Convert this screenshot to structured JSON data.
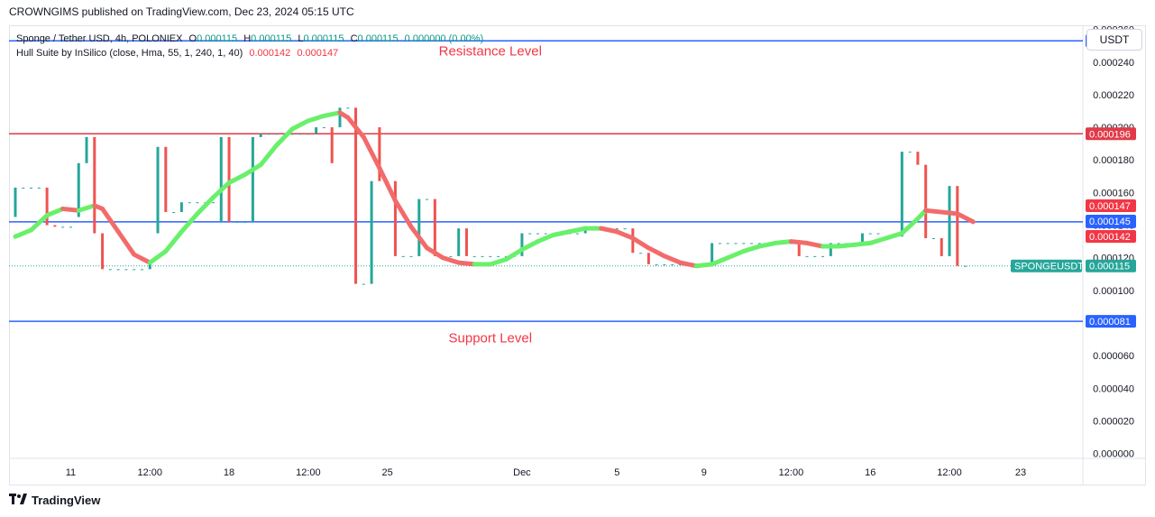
{
  "header": {
    "published_by": "CROWNGIMS published on TradingView.com, Dec 23, 2024 05:15 UTC"
  },
  "legend": {
    "symbol": "Sponge / Tether USD, 4h, POLONIEX",
    "o_label": "O",
    "o_value": "0.000115",
    "h_label": "H",
    "h_value": "0.000115",
    "l_label": "L",
    "l_value": "0.000115",
    "c_label": "C",
    "c_value": "0.000115",
    "change": "0.000000 (0.00%)",
    "indicator": "Hull Suite by InSilico (close, Hma, 55, 1, 240, 1, 40)",
    "ind_value1": "0.000142",
    "ind_value2": "0.000147"
  },
  "currency": "USDT",
  "footer": {
    "brand": "TradingView"
  },
  "colors": {
    "up": "#26a69a",
    "down": "#ef5350",
    "hull_up": "#69f06b",
    "hull_down": "#f26b6b",
    "blue": "#2962ff",
    "red_line": "#e03a48",
    "annotation": "#f23645"
  },
  "chart_data": {
    "type": "candlestick",
    "ylim": [
      -3e-06,
      0.000262
    ],
    "yticks": [
      {
        "v": 0.00026,
        "label": "0.000260"
      },
      {
        "v": 0.00024,
        "label": "0.000240"
      },
      {
        "v": 0.00022,
        "label": "0.000220"
      },
      {
        "v": 0.0002,
        "label": "0.000200"
      },
      {
        "v": 0.00018,
        "label": "0.000180"
      },
      {
        "v": 0.00016,
        "label": "0.000160"
      },
      {
        "v": 0.00014,
        "label": "0.000140"
      },
      {
        "v": 0.00012,
        "label": "0.000120"
      },
      {
        "v": 0.0001,
        "label": "0.000100"
      },
      {
        "v": 8e-05,
        "label": "0.000080"
      },
      {
        "v": 6e-05,
        "label": "0.000060"
      },
      {
        "v": 4e-05,
        "label": "0.000040"
      },
      {
        "v": 2e-05,
        "label": "0.000020"
      },
      {
        "v": 0.0,
        "label": "0.000000"
      }
    ],
    "xticks": [
      {
        "i": 7,
        "label": "11"
      },
      {
        "i": 17,
        "label": "12:00"
      },
      {
        "i": 27,
        "label": "18"
      },
      {
        "i": 37,
        "label": "12:00"
      },
      {
        "i": 47,
        "label": "25"
      },
      {
        "i": 64,
        "label": "Dec"
      },
      {
        "i": 76,
        "label": "5"
      },
      {
        "i": 87,
        "label": "9"
      },
      {
        "i": 98,
        "label": "12:00"
      },
      {
        "i": 108,
        "label": "16"
      },
      {
        "i": 118,
        "label": "12:00"
      },
      {
        "i": 127,
        "label": "23"
      }
    ],
    "x_count": 133,
    "candles": [
      {
        "i": 0,
        "o": 0.000145,
        "c": 0.000163
      },
      {
        "i": 1,
        "o": 0.000163,
        "c": 0.000163
      },
      {
        "i": 2,
        "o": 0.000163,
        "c": 0.000163
      },
      {
        "i": 3,
        "o": 0.000163,
        "c": 0.000163
      },
      {
        "i": 4,
        "o": 0.000163,
        "c": 0.00014
      },
      {
        "i": 5,
        "o": 0.00014,
        "c": 0.000139
      },
      {
        "i": 6,
        "o": 0.000139,
        "c": 0.000139
      },
      {
        "i": 7,
        "o": 0.000139,
        "c": 0.000139
      },
      {
        "i": 8,
        "o": 0.000145,
        "c": 0.000178
      },
      {
        "i": 9,
        "o": 0.000178,
        "c": 0.000194
      },
      {
        "i": 10,
        "o": 0.000194,
        "c": 0.000135
      },
      {
        "i": 11,
        "o": 0.000135,
        "c": 0.000113
      },
      {
        "i": 12,
        "o": 0.000113,
        "c": 0.000113
      },
      {
        "i": 13,
        "o": 0.000113,
        "c": 0.000113
      },
      {
        "i": 14,
        "o": 0.000113,
        "c": 0.000113
      },
      {
        "i": 15,
        "o": 0.000113,
        "c": 0.000113
      },
      {
        "i": 16,
        "o": 0.000113,
        "c": 0.000113
      },
      {
        "i": 17,
        "o": 0.000113,
        "c": 0.000118
      },
      {
        "i": 18,
        "o": 0.000135,
        "c": 0.000188
      },
      {
        "i": 19,
        "o": 0.000188,
        "c": 0.000148
      },
      {
        "i": 20,
        "o": 0.000148,
        "c": 0.000148
      },
      {
        "i": 21,
        "o": 0.000148,
        "c": 0.000154
      },
      {
        "i": 22,
        "o": 0.000154,
        "c": 0.000154
      },
      {
        "i": 23,
        "o": 0.000154,
        "c": 0.000154
      },
      {
        "i": 24,
        "o": 0.000154,
        "c": 0.000154
      },
      {
        "i": 25,
        "o": 0.000154,
        "c": 0.000154
      },
      {
        "i": 26,
        "o": 0.000142,
        "c": 0.000194
      },
      {
        "i": 27,
        "o": 0.000194,
        "c": 0.000142
      },
      {
        "i": 28,
        "o": 0.000142,
        "c": 0.000142
      },
      {
        "i": 29,
        "o": 0.000142,
        "c": 0.000142
      },
      {
        "i": 30,
        "o": 0.000142,
        "c": 0.000194
      },
      {
        "i": 31,
        "o": 0.000194,
        "c": 0.000196
      },
      {
        "i": 32,
        "o": 0.000196,
        "c": 0.000196
      },
      {
        "i": 33,
        "o": 0.000196,
        "c": 0.000196
      },
      {
        "i": 34,
        "o": 0.000196,
        "c": 0.000196
      },
      {
        "i": 35,
        "o": 0.000196,
        "c": 0.000196
      },
      {
        "i": 36,
        "o": 0.000196,
        "c": 0.000196
      },
      {
        "i": 37,
        "o": 0.000196,
        "c": 0.000196
      },
      {
        "i": 38,
        "o": 0.000196,
        "c": 0.0002
      },
      {
        "i": 39,
        "o": 0.0002,
        "c": 0.0002
      },
      {
        "i": 40,
        "o": 0.0002,
        "c": 0.000178
      },
      {
        "i": 41,
        "o": 0.0002,
        "c": 0.000212
      },
      {
        "i": 42,
        "o": 0.000212,
        "c": 0.000212
      },
      {
        "i": 43,
        "o": 0.000212,
        "c": 0.000104
      },
      {
        "i": 44,
        "o": 0.000104,
        "c": 0.000104
      },
      {
        "i": 45,
        "o": 0.000104,
        "c": 0.000167
      },
      {
        "i": 46,
        "o": 0.0002,
        "c": 0.000167
      },
      {
        "i": 47,
        "o": 0.000167,
        "c": 0.000167
      },
      {
        "i": 48,
        "o": 0.000167,
        "c": 0.000121
      },
      {
        "i": 49,
        "o": 0.000121,
        "c": 0.000121
      },
      {
        "i": 50,
        "o": 0.000121,
        "c": 0.000121
      },
      {
        "i": 51,
        "o": 0.000121,
        "c": 0.000156
      },
      {
        "i": 52,
        "o": 0.000156,
        "c": 0.000156
      },
      {
        "i": 53,
        "o": 0.000156,
        "c": 0.000121
      },
      {
        "i": 54,
        "o": 0.000121,
        "c": 0.000121
      },
      {
        "i": 55,
        "o": 0.000121,
        "c": 0.000121
      },
      {
        "i": 56,
        "o": 0.000121,
        "c": 0.000138
      },
      {
        "i": 57,
        "o": 0.000138,
        "c": 0.000121
      },
      {
        "i": 58,
        "o": 0.000121,
        "c": 0.000121
      },
      {
        "i": 59,
        "o": 0.000121,
        "c": 0.000121
      },
      {
        "i": 60,
        "o": 0.000121,
        "c": 0.000121
      },
      {
        "i": 61,
        "o": 0.000121,
        "c": 0.000121
      },
      {
        "i": 62,
        "o": 0.000121,
        "c": 0.000121
      },
      {
        "i": 63,
        "o": 0.000121,
        "c": 0.000121
      },
      {
        "i": 64,
        "o": 0.000121,
        "c": 0.000135
      },
      {
        "i": 65,
        "o": 0.000135,
        "c": 0.000135
      },
      {
        "i": 66,
        "o": 0.000135,
        "c": 0.000135
      },
      {
        "i": 67,
        "o": 0.000135,
        "c": 0.000135
      },
      {
        "i": 68,
        "o": 0.000135,
        "c": 0.000135
      },
      {
        "i": 69,
        "o": 0.000135,
        "c": 0.000135
      },
      {
        "i": 70,
        "o": 0.000135,
        "c": 0.000135
      },
      {
        "i": 71,
        "o": 0.000135,
        "c": 0.000135
      },
      {
        "i": 72,
        "o": 0.000135,
        "c": 0.000138
      },
      {
        "i": 73,
        "o": 0.000138,
        "c": 0.000138
      },
      {
        "i": 74,
        "o": 0.000138,
        "c": 0.000138
      },
      {
        "i": 75,
        "o": 0.000138,
        "c": 0.000138
      },
      {
        "i": 76,
        "o": 0.000138,
        "c": 0.000138
      },
      {
        "i": 77,
        "o": 0.000138,
        "c": 0.000138
      },
      {
        "i": 78,
        "o": 0.000138,
        "c": 0.000123
      },
      {
        "i": 79,
        "o": 0.000123,
        "c": 0.000123
      },
      {
        "i": 80,
        "o": 0.000123,
        "c": 0.000116
      },
      {
        "i": 81,
        "o": 0.000116,
        "c": 0.000116
      },
      {
        "i": 82,
        "o": 0.000116,
        "c": 0.000116
      },
      {
        "i": 83,
        "o": 0.000116,
        "c": 0.000116
      },
      {
        "i": 84,
        "o": 0.000116,
        "c": 0.000116
      },
      {
        "i": 85,
        "o": 0.000116,
        "c": 0.000116
      },
      {
        "i": 86,
        "o": 0.000116,
        "c": 0.000116
      },
      {
        "i": 87,
        "o": 0.000116,
        "c": 0.000116
      },
      {
        "i": 88,
        "o": 0.000116,
        "c": 0.000129
      },
      {
        "i": 89,
        "o": 0.000129,
        "c": 0.000129
      },
      {
        "i": 90,
        "o": 0.000129,
        "c": 0.000129
      },
      {
        "i": 91,
        "o": 0.000129,
        "c": 0.000129
      },
      {
        "i": 92,
        "o": 0.000129,
        "c": 0.000129
      },
      {
        "i": 93,
        "o": 0.000129,
        "c": 0.000129
      },
      {
        "i": 94,
        "o": 0.000129,
        "c": 0.000129
      },
      {
        "i": 95,
        "o": 0.000129,
        "c": 0.000129
      },
      {
        "i": 96,
        "o": 0.000129,
        "c": 0.000129
      },
      {
        "i": 97,
        "o": 0.000129,
        "c": 0.000129
      },
      {
        "i": 98,
        "o": 0.000129,
        "c": 0.000129
      },
      {
        "i": 99,
        "o": 0.000129,
        "c": 0.000121
      },
      {
        "i": 100,
        "o": 0.000121,
        "c": 0.000121
      },
      {
        "i": 101,
        "o": 0.000121,
        "c": 0.000121
      },
      {
        "i": 102,
        "o": 0.000121,
        "c": 0.000121
      },
      {
        "i": 103,
        "o": 0.000121,
        "c": 0.000129
      },
      {
        "i": 104,
        "o": 0.000129,
        "c": 0.000129
      },
      {
        "i": 105,
        "o": 0.000129,
        "c": 0.000129
      },
      {
        "i": 106,
        "o": 0.000129,
        "c": 0.000129
      },
      {
        "i": 107,
        "o": 0.000129,
        "c": 0.000135
      },
      {
        "i": 108,
        "o": 0.000135,
        "c": 0.000135
      },
      {
        "i": 109,
        "o": 0.000135,
        "c": 0.000135
      },
      {
        "i": 110,
        "o": 0.000133,
        "c": 0.000133
      },
      {
        "i": 111,
        "o": 0.000133,
        "c": 0.000133
      },
      {
        "i": 112,
        "o": 0.000133,
        "c": 0.000185
      },
      {
        "i": 113,
        "o": 0.000185,
        "c": 0.000185
      },
      {
        "i": 114,
        "o": 0.000185,
        "c": 0.000177
      },
      {
        "i": 115,
        "o": 0.000177,
        "c": 0.000132
      },
      {
        "i": 116,
        "o": 0.000132,
        "c": 0.000132
      },
      {
        "i": 117,
        "o": 0.000132,
        "c": 0.000121
      },
      {
        "i": 118,
        "o": 0.000121,
        "c": 0.000164
      },
      {
        "i": 119,
        "o": 0.000164,
        "c": 0.000115
      },
      {
        "i": 120,
        "o": 0.000115,
        "c": 0.000115
      }
    ],
    "hull": [
      {
        "i": 0,
        "v": 0.000133
      },
      {
        "i": 2,
        "v": 0.000137
      },
      {
        "i": 4,
        "v": 0.000146
      },
      {
        "i": 6,
        "v": 0.00015
      },
      {
        "i": 8,
        "v": 0.000149
      },
      {
        "i": 10,
        "v": 0.000152
      },
      {
        "i": 11,
        "v": 0.00015
      },
      {
        "i": 13,
        "v": 0.000136
      },
      {
        "i": 15,
        "v": 0.000122
      },
      {
        "i": 17,
        "v": 0.000117
      },
      {
        "i": 19,
        "v": 0.000124
      },
      {
        "i": 21,
        "v": 0.000136
      },
      {
        "i": 23,
        "v": 0.000147
      },
      {
        "i": 25,
        "v": 0.000157
      },
      {
        "i": 27,
        "v": 0.000166
      },
      {
        "i": 29,
        "v": 0.000171
      },
      {
        "i": 31,
        "v": 0.000177
      },
      {
        "i": 33,
        "v": 0.000189
      },
      {
        "i": 35,
        "v": 0.000199
      },
      {
        "i": 37,
        "v": 0.000204
      },
      {
        "i": 39,
        "v": 0.000207
      },
      {
        "i": 41,
        "v": 0.000209
      },
      {
        "i": 42,
        "v": 0.000206
      },
      {
        "i": 44,
        "v": 0.000194
      },
      {
        "i": 46,
        "v": 0.000175
      },
      {
        "i": 48,
        "v": 0.000155
      },
      {
        "i": 50,
        "v": 0.000139
      },
      {
        "i": 52,
        "v": 0.000126
      },
      {
        "i": 54,
        "v": 0.00012
      },
      {
        "i": 56,
        "v": 0.000117
      },
      {
        "i": 58,
        "v": 0.000116
      },
      {
        "i": 60,
        "v": 0.000116
      },
      {
        "i": 62,
        "v": 0.000119
      },
      {
        "i": 64,
        "v": 0.000125
      },
      {
        "i": 66,
        "v": 0.00013
      },
      {
        "i": 68,
        "v": 0.000134
      },
      {
        "i": 70,
        "v": 0.000136
      },
      {
        "i": 72,
        "v": 0.000138
      },
      {
        "i": 74,
        "v": 0.000138
      },
      {
        "i": 76,
        "v": 0.000136
      },
      {
        "i": 78,
        "v": 0.000132
      },
      {
        "i": 80,
        "v": 0.000126
      },
      {
        "i": 82,
        "v": 0.000121
      },
      {
        "i": 84,
        "v": 0.000117
      },
      {
        "i": 86,
        "v": 0.000115
      },
      {
        "i": 88,
        "v": 0.000116
      },
      {
        "i": 90,
        "v": 0.00012
      },
      {
        "i": 92,
        "v": 0.000124
      },
      {
        "i": 94,
        "v": 0.000127
      },
      {
        "i": 96,
        "v": 0.000129
      },
      {
        "i": 98,
        "v": 0.00013
      },
      {
        "i": 100,
        "v": 0.000129
      },
      {
        "i": 102,
        "v": 0.000127
      },
      {
        "i": 104,
        "v": 0.000127
      },
      {
        "i": 106,
        "v": 0.000128
      },
      {
        "i": 108,
        "v": 0.000129
      },
      {
        "i": 110,
        "v": 0.000132
      },
      {
        "i": 112,
        "v": 0.000135
      },
      {
        "i": 114,
        "v": 0.000144
      },
      {
        "i": 115,
        "v": 0.000149
      },
      {
        "i": 117,
        "v": 0.000148
      },
      {
        "i": 119,
        "v": 0.000147
      },
      {
        "i": 121,
        "v": 0.000142
      }
    ],
    "hlines": [
      {
        "v": 0.000253,
        "color": "#2962ff",
        "label": "0.000253"
      },
      {
        "v": 0.000196,
        "color": "#e03a48",
        "label": "0.000196"
      },
      {
        "v": 0.000142,
        "color": "#2962ff",
        "label": "0.000142"
      },
      {
        "v": 8.1e-05,
        "color": "#2962ff",
        "label": "0.000081"
      }
    ],
    "price_badges": [
      {
        "v": 0.000147,
        "label": "0.000147",
        "color": "#f23645"
      },
      {
        "v": 0.000145,
        "label": "0.000145",
        "color": "#2962ff"
      },
      {
        "v": 0.000142,
        "label": "0.000142",
        "color": "#f23645"
      }
    ],
    "current": {
      "v": 0.000115,
      "label": "0.000115",
      "symbol": "SPONGEUSDT",
      "color": "#26a69a"
    },
    "annotations": [
      {
        "text": "Resistance Level",
        "i": 60,
        "v": 0.000244
      },
      {
        "text": "Support Level",
        "i": 60,
        "v": 6.8e-05
      }
    ]
  }
}
